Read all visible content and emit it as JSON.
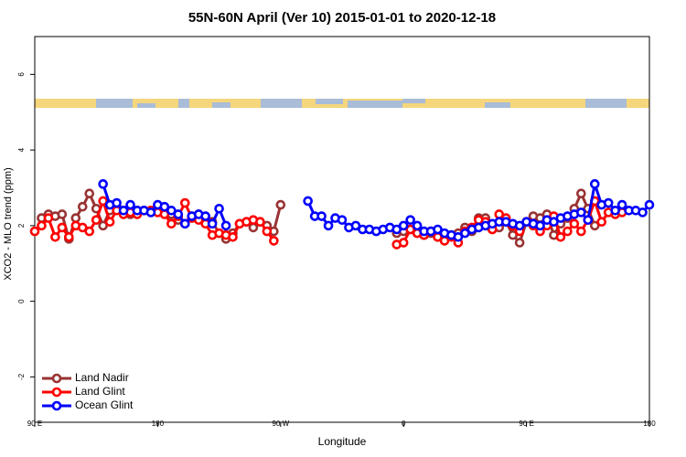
{
  "chart_data": {
    "type": "line",
    "title": "55N-60N April (Ver 10)   2015-01-01 to 2020-12-18",
    "x_label": "Longitude",
    "y_label": "XCO2 - MLO trend (ppm)",
    "xlim": [
      90,
      540
    ],
    "ylim": [
      -3.2,
      7
    ],
    "xticks": [
      {
        "value": 90,
        "label": "90 E"
      },
      {
        "value": 180,
        "label": "180"
      },
      {
        "value": 270,
        "label": "90 W"
      },
      {
        "value": 360,
        "label": "0"
      },
      {
        "value": 450,
        "label": "90 E"
      },
      {
        "value": 540,
        "label": "180"
      }
    ],
    "yticks": [
      -2,
      0,
      2,
      4,
      6
    ],
    "legend": "bottom left",
    "x": [
      90,
      95,
      100,
      105,
      110,
      115,
      120,
      125,
      130,
      135,
      140,
      145,
      150,
      155,
      160,
      165,
      170,
      175,
      180,
      185,
      190,
      195,
      200,
      205,
      210,
      215,
      220,
      225,
      230,
      235,
      240,
      245,
      250,
      255,
      260,
      265,
      270,
      275,
      280,
      285,
      290,
      295,
      300,
      305,
      310,
      315,
      320,
      325,
      330,
      335,
      340,
      345,
      350,
      355,
      360,
      365,
      370,
      375,
      380,
      385,
      390,
      395,
      400,
      405,
      410,
      415,
      420,
      425,
      430,
      435,
      440,
      445,
      450,
      455,
      460,
      465,
      470,
      475,
      480,
      485,
      490,
      495,
      500,
      505,
      510,
      515,
      520,
      525,
      530,
      535,
      540
    ],
    "series": [
      {
        "name": "Land Nadir",
        "color": "#993333",
        "values": [
          null,
          2.2,
          2.3,
          2.25,
          2.3,
          1.65,
          2.2,
          2.5,
          2.85,
          2.45,
          2.0,
          2.4,
          2.5,
          2.4,
          2.3,
          2.4,
          2.4,
          2.35,
          2.4,
          2.45,
          2.3,
          2.15,
          2.05,
          2.25,
          2.3,
          2.2,
          2.1,
          1.8,
          1.65,
          1.8,
          2.05,
          2.1,
          1.95,
          2.1,
          2.0,
          1.85,
          2.55,
          null,
          null,
          null,
          null,
          null,
          null,
          null,
          null,
          null,
          null,
          null,
          null,
          null,
          null,
          null,
          null,
          1.8,
          1.85,
          1.9,
          1.8,
          1.75,
          1.8,
          1.7,
          1.65,
          1.75,
          1.8,
          1.95,
          1.85,
          2.2,
          2.2,
          1.9,
          1.95,
          2.1,
          1.75,
          1.55,
          2.1,
          2.25,
          2.2,
          2.3,
          1.75,
          2.05,
          2.2,
          2.45,
          2.85,
          2.45,
          2.0,
          null,
          null,
          null,
          null,
          null,
          null,
          null,
          null
        ]
      },
      {
        "name": "Land Glint",
        "color": "#ff0000",
        "values": [
          1.85,
          2.0,
          2.2,
          1.7,
          1.95,
          1.7,
          2.0,
          1.95,
          1.85,
          2.15,
          2.65,
          2.1,
          2.4,
          2.3,
          2.35,
          2.3,
          2.4,
          2.4,
          2.35,
          2.3,
          2.05,
          2.25,
          2.6,
          2.2,
          2.15,
          2.05,
          1.75,
          1.8,
          1.75,
          1.7,
          2.05,
          2.1,
          2.15,
          2.1,
          1.85,
          1.6,
          null,
          null,
          null,
          null,
          null,
          null,
          null,
          null,
          null,
          null,
          null,
          null,
          null,
          null,
          null,
          null,
          null,
          1.5,
          1.55,
          1.9,
          1.8,
          1.75,
          1.85,
          1.7,
          1.6,
          1.7,
          1.55,
          1.85,
          1.95,
          2.15,
          2.1,
          1.9,
          2.3,
          2.2,
          2.0,
          1.85,
          2.1,
          2.0,
          1.85,
          2.0,
          2.25,
          1.7,
          1.85,
          2.05,
          1.85,
          2.15,
          2.65,
          2.1,
          2.35,
          2.3,
          2.35,
          null,
          null,
          null,
          null
        ]
      },
      {
        "name": "Ocean Glint",
        "color": "#0000ff",
        "values": [
          null,
          null,
          null,
          null,
          null,
          null,
          null,
          null,
          null,
          null,
          3.1,
          2.55,
          2.6,
          2.4,
          2.55,
          2.4,
          2.4,
          2.35,
          2.55,
          2.5,
          2.4,
          2.3,
          2.05,
          2.25,
          2.3,
          2.25,
          2.05,
          2.45,
          2.0,
          null,
          null,
          null,
          null,
          null,
          null,
          null,
          null,
          null,
          null,
          null,
          2.65,
          2.25,
          2.25,
          2.0,
          2.2,
          2.15,
          1.95,
          2.0,
          1.9,
          1.9,
          1.85,
          1.9,
          1.95,
          1.9,
          2.0,
          2.15,
          2.0,
          1.85,
          1.85,
          1.9,
          1.8,
          1.75,
          1.7,
          1.8,
          1.9,
          1.95,
          2.0,
          2.05,
          2.1,
          2.1,
          2.05,
          2.0,
          2.1,
          2.05,
          2.0,
          2.15,
          2.1,
          2.2,
          2.25,
          2.3,
          2.35,
          2.15,
          3.1,
          2.55,
          2.6,
          2.4,
          2.55,
          2.4,
          2.4,
          2.35,
          2.55
        ]
      }
    ]
  }
}
